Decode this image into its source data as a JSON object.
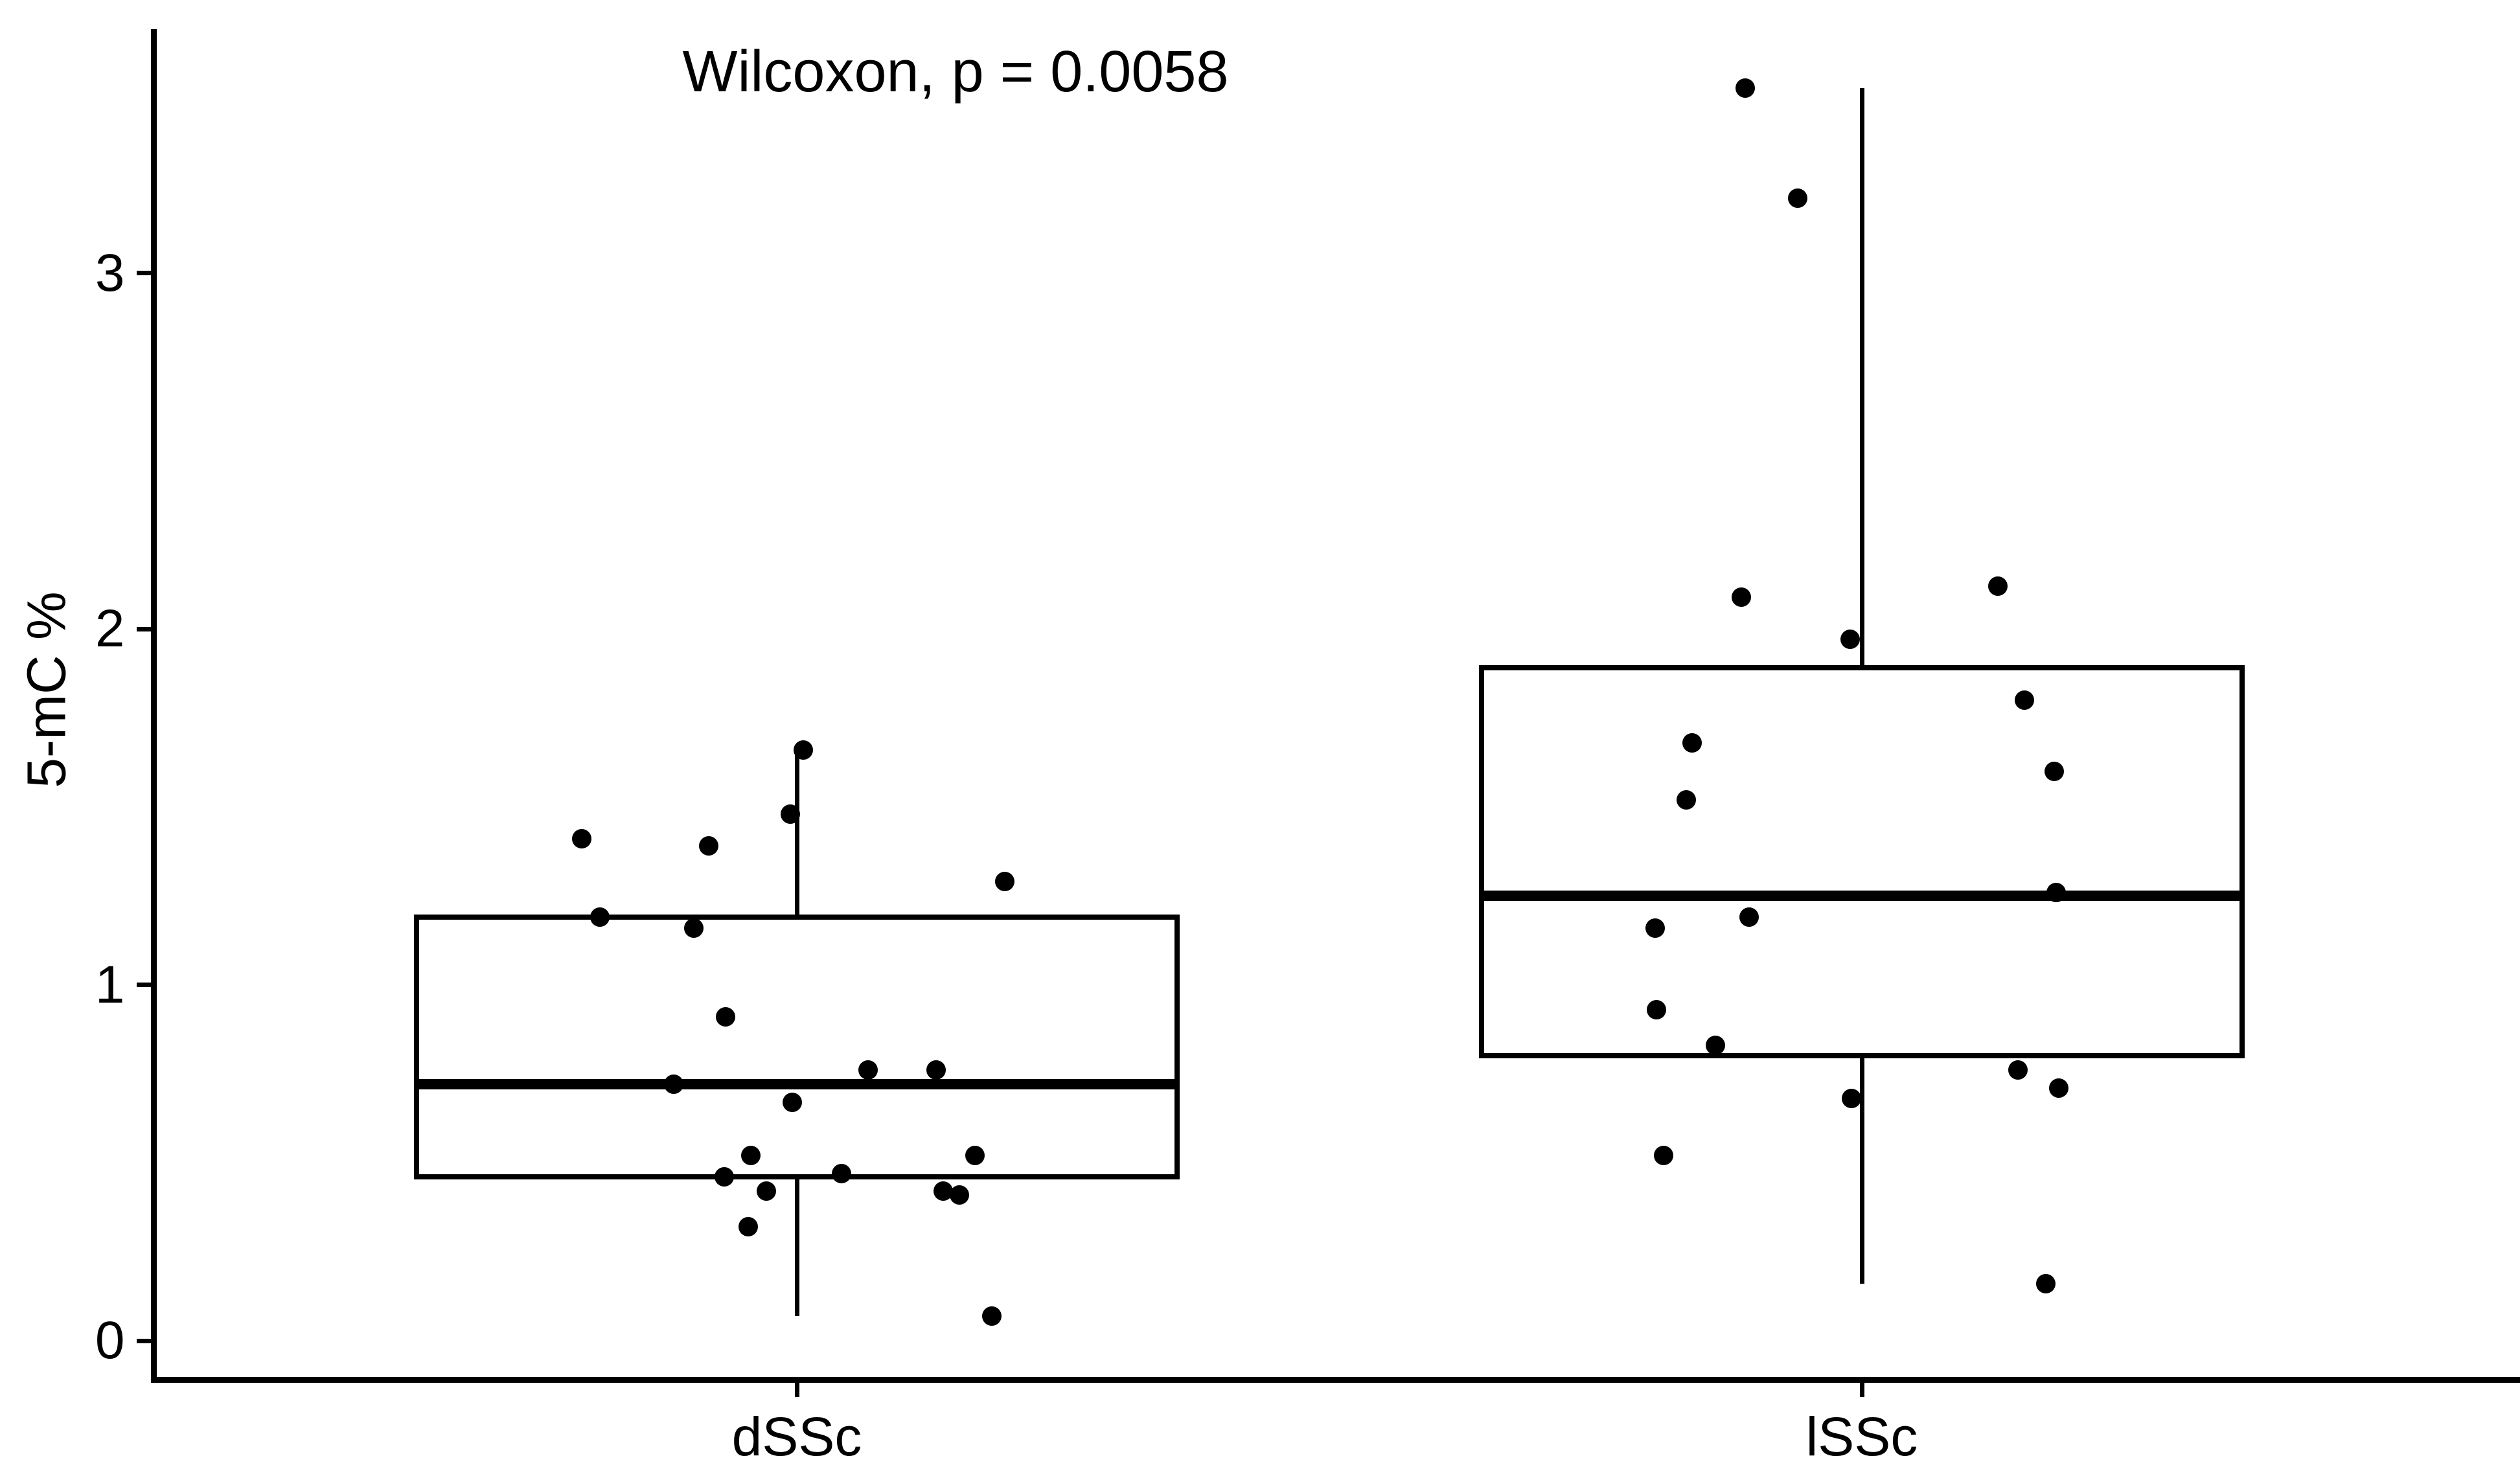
{
  "title": "Wilcoxon, p = 0.0058",
  "colors": {
    "ink": "#000000",
    "background": "#ffffff"
  },
  "chart_data": {
    "type": "boxplot",
    "subtype": "boxplot_with_jitter_points",
    "title": "Wilcoxon, p = 0.0058",
    "xlabel": "",
    "ylabel": "5-mC %",
    "categories": [
      "dSSc",
      "lSSc"
    ],
    "yticks": [
      0,
      1,
      2,
      3
    ],
    "ylim": [
      -0.11,
      3.69
    ],
    "grid": false,
    "legend": "none",
    "point_color": "#000000",
    "groups": [
      {
        "label": "dSSc",
        "box": {
          "whisker_low": 0.07,
          "q1": 0.46,
          "median": 0.72,
          "q3": 1.19,
          "whisker_high": 1.66
        },
        "points": [
          {
            "v": 1.66,
            "dx": 10
          },
          {
            "v": 1.48,
            "dx": -10
          },
          {
            "v": 1.41,
            "dx": -332
          },
          {
            "v": 1.39,
            "dx": -136
          },
          {
            "v": 1.29,
            "dx": 321
          },
          {
            "v": 1.19,
            "dx": -304
          },
          {
            "v": 1.16,
            "dx": -159
          },
          {
            "v": 0.91,
            "dx": -110
          },
          {
            "v": 0.72,
            "dx": -190
          },
          {
            "v": 0.76,
            "dx": 110
          },
          {
            "v": 0.76,
            "dx": 215
          },
          {
            "v": 0.67,
            "dx": -7
          },
          {
            "v": 0.52,
            "dx": -71
          },
          {
            "v": 0.52,
            "dx": 275
          },
          {
            "v": 0.46,
            "dx": -112
          },
          {
            "v": 0.47,
            "dx": 69
          },
          {
            "v": 0.42,
            "dx": -47
          },
          {
            "v": 0.42,
            "dx": 226
          },
          {
            "v": 0.41,
            "dx": 251
          },
          {
            "v": 0.32,
            "dx": -75
          },
          {
            "v": 0.07,
            "dx": 301
          }
        ]
      },
      {
        "label": "lSSc",
        "box": {
          "whisker_low": 0.16,
          "q1": 0.8,
          "median": 1.25,
          "q3": 1.89,
          "whisker_high": 3.52
        },
        "points": [
          {
            "v": 3.52,
            "dx": -180
          },
          {
            "v": 3.21,
            "dx": -99
          },
          {
            "v": 2.12,
            "dx": 210
          },
          {
            "v": 2.09,
            "dx": -186
          },
          {
            "v": 1.97,
            "dx": -18
          },
          {
            "v": 1.8,
            "dx": 251
          },
          {
            "v": 1.68,
            "dx": -262
          },
          {
            "v": 1.6,
            "dx": 297
          },
          {
            "v": 1.52,
            "dx": -271
          },
          {
            "v": 1.26,
            "dx": 300
          },
          {
            "v": 1.19,
            "dx": -174
          },
          {
            "v": 1.16,
            "dx": -319
          },
          {
            "v": 0.93,
            "dx": -317
          },
          {
            "v": 0.83,
            "dx": -226
          },
          {
            "v": 0.76,
            "dx": 241
          },
          {
            "v": 0.71,
            "dx": 304
          },
          {
            "v": 0.68,
            "dx": -16
          },
          {
            "v": 0.52,
            "dx": -306
          },
          {
            "v": 0.16,
            "dx": 284
          }
        ]
      }
    ]
  }
}
